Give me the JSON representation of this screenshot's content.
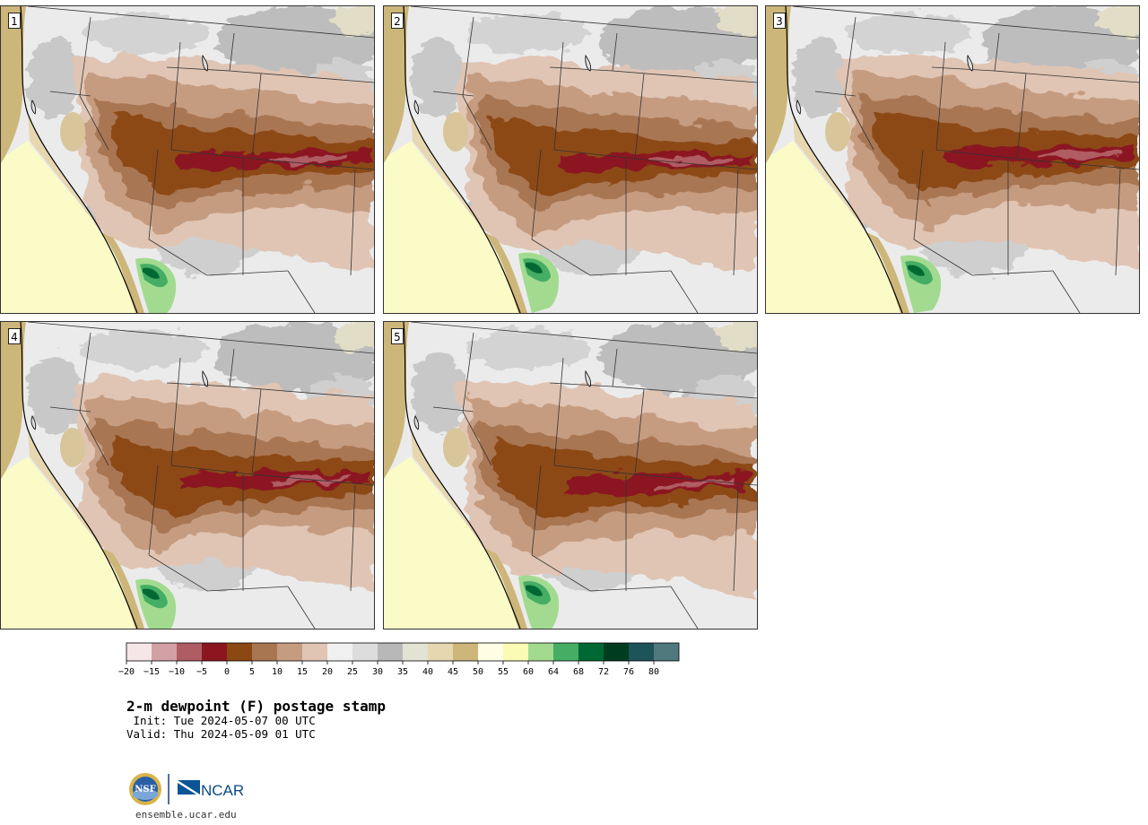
{
  "panels": [
    {
      "label": "1",
      "variant": 0
    },
    {
      "label": "2",
      "variant": 1
    },
    {
      "label": "3",
      "variant": 2
    },
    {
      "label": "4",
      "variant": 3
    },
    {
      "label": "5",
      "variant": 4
    }
  ],
  "colorbar": {
    "colors": [
      "#f6e6e8",
      "#d3a0a5",
      "#b05c63",
      "#8b1620",
      "#8c4812",
      "#a97652",
      "#c69c80",
      "#e0c5b4",
      "#f0f0f0",
      "#dddddd",
      "#b8b8b8",
      "#e3e3d4",
      "#e6d7b1",
      "#cdb679",
      "#fffde4",
      "#fbfbb5",
      "#a2db90",
      "#45ad64",
      "#006933",
      "#003d1f",
      "#1d5459",
      "#4f797c"
    ],
    "tick_labels": [
      "−20",
      "−15",
      "−10",
      "−5",
      "0",
      "5",
      "10",
      "15",
      "20",
      "25",
      "30",
      "35",
      "40",
      "45",
      "50",
      "55",
      "60",
      "64",
      "68",
      "72",
      "76",
      "80"
    ]
  },
  "title": "2-m dewpoint (F) postage stamp",
  "init_line": " Init: Tue 2024-05-07 00 UTC",
  "valid_line": "Valid: Thu 2024-05-09 01 UTC",
  "logo": {
    "nsf_text": "NSF",
    "ncar_text": "NCAR"
  },
  "footer_url": "ensemble.ucar.edu"
}
